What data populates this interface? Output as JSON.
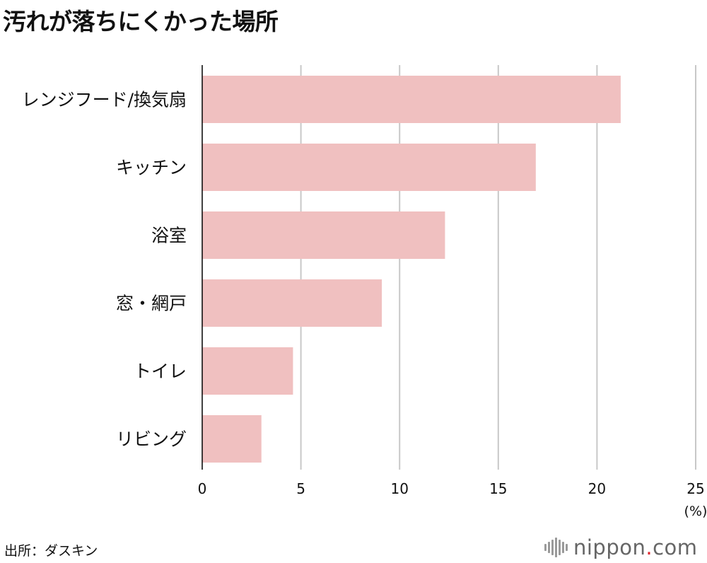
{
  "title": "汚れが落ちにくかった場所",
  "source": "出所：ダスキン",
  "logo": {
    "name": "nippon",
    "dot": ".",
    "tld": "com",
    "icon": "sound-wave-icon"
  },
  "colors": {
    "bar": "#f0c0c0",
    "axis": "#000000",
    "grid": "#c8c8c8",
    "logo_dot": "#e0262e"
  },
  "chart_data": {
    "type": "bar",
    "orientation": "horizontal",
    "title": "汚れが落ちにくかった場所",
    "categories": [
      "レンジフード/換気扇",
      "キッチン",
      "浴室",
      "窓・網戸",
      "トイレ",
      "リビング"
    ],
    "values": [
      21.2,
      16.9,
      12.3,
      9.1,
      4.6,
      3.0
    ],
    "xlim": [
      0,
      25
    ],
    "xticks": [
      "0",
      "5",
      "10",
      "15",
      "20",
      "25"
    ],
    "xunit": "(%)",
    "grid": true
  }
}
